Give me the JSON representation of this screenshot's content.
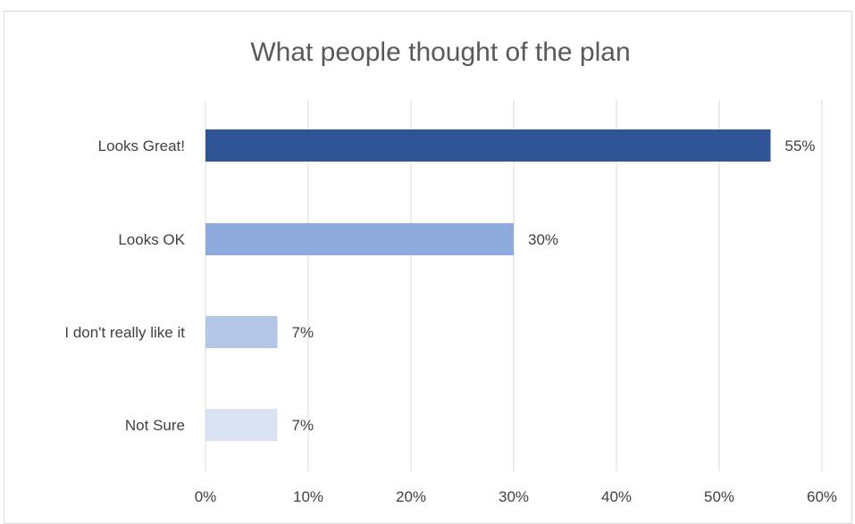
{
  "chart_data": {
    "type": "bar",
    "orientation": "horizontal",
    "title": "What people thought of the plan",
    "xlabel": "",
    "ylabel": "",
    "categories": [
      "Looks Great!",
      "Looks OK",
      "I don't really like it",
      "Not Sure"
    ],
    "values": [
      55,
      30,
      7,
      7
    ],
    "value_labels": [
      "55%",
      "30%",
      "7%",
      "7%"
    ],
    "bar_colors": [
      "#2f5597",
      "#8faadc",
      "#b4c7e7",
      "#dae3f3"
    ],
    "xlim": [
      0,
      60
    ],
    "x_ticks": [
      0,
      10,
      20,
      30,
      40,
      50,
      60
    ],
    "x_tick_labels": [
      "0%",
      "10%",
      "20%",
      "30%",
      "40%",
      "50%",
      "60%"
    ],
    "grid": "vertical",
    "legend": "none"
  }
}
